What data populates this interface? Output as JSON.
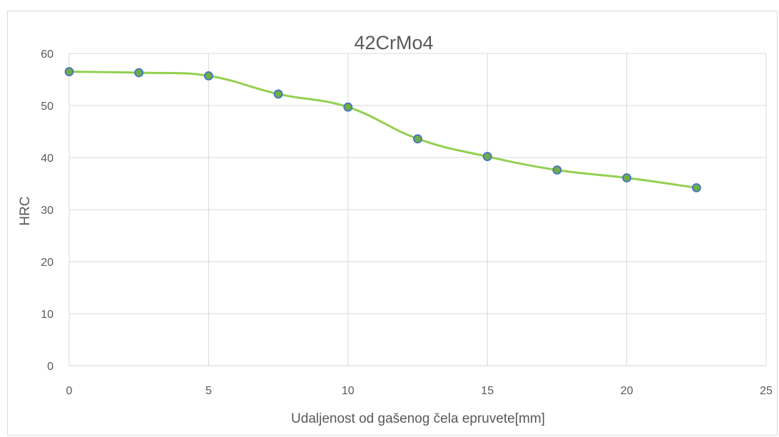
{
  "chart_data": {
    "type": "line",
    "title": "42CrMo4",
    "xlabel": "Udaljenost od gašenog čela epruvete[mm]",
    "ylabel": "HRC",
    "xlim": [
      0,
      25
    ],
    "ylim": [
      0,
      60
    ],
    "xticks": [
      0,
      5,
      10,
      15,
      20,
      25
    ],
    "yticks": [
      0,
      10,
      20,
      30,
      40,
      50,
      60
    ],
    "grid": "vertical and horizontal major gridlines",
    "legend": "none",
    "smooth": true,
    "series": [
      {
        "x": [
          0,
          2.5,
          5,
          7.5,
          10,
          12.5,
          15,
          17.5,
          20,
          22.5
        ],
        "y": [
          56.5,
          56.3,
          55.7,
          52.2,
          49.7,
          43.6,
          40.2,
          37.6,
          36.1,
          34.2
        ]
      }
    ],
    "colors": {
      "line": "#92d050",
      "marker_fill": "#70ad47",
      "marker_edge": "#4472c4",
      "grid": "#d9d9d9",
      "text": "#595959"
    }
  }
}
